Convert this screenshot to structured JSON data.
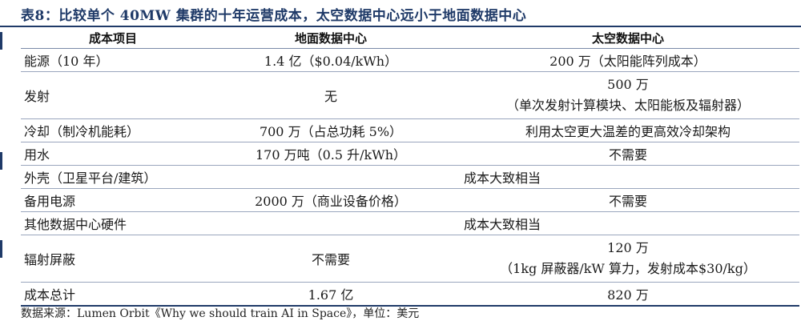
{
  "title": "表8：比较单个 40MW 集群的十年运营成本，太空数据中心远小于地面数据中心",
  "headers": [
    "成本项目",
    "地面数据中心",
    "太空数据中心"
  ],
  "rows": [
    {
      "item": "能源（10 年）",
      "ground": "1.4 亿（$0.04/kWh）",
      "space": "200 万（太阳能阵列成本）"
    },
    {
      "item": "发射",
      "ground": "无",
      "space": "500 万",
      "space_note": "（单次发射计算模块、太阳能板及辐射器）"
    },
    {
      "item": "冷却（制冷机能耗）",
      "ground": "700 万（占总功耗 5%）",
      "space": "利用太空更大温差的更高效冷却架构"
    },
    {
      "item": "用水",
      "ground": "170 万吨（0.5 升/kWh）",
      "space": "不需要"
    },
    {
      "item": "外壳（卫星平台/建筑）",
      "merged": "成本大致相当"
    },
    {
      "item": "备用电源",
      "ground": "2000 万（商业设备价格）",
      "space": "不需要"
    },
    {
      "item": "其他数据中心硬件",
      "merged": "成本大致相当"
    },
    {
      "item": "辐射屏蔽",
      "ground": "不需要",
      "space": "120 万",
      "space_note": "（1kg 屏蔽器/kW 算力，发射成本$30/kg）"
    },
    {
      "item": "成本总计",
      "ground": "1.67 亿",
      "space": "820 万"
    }
  ],
  "source": "数据来源：Lumen Orbit《Why we should train AI in Space》，单位：美元",
  "colors": {
    "accent": "#1f3a68",
    "rule": "#9aa6bd"
  }
}
